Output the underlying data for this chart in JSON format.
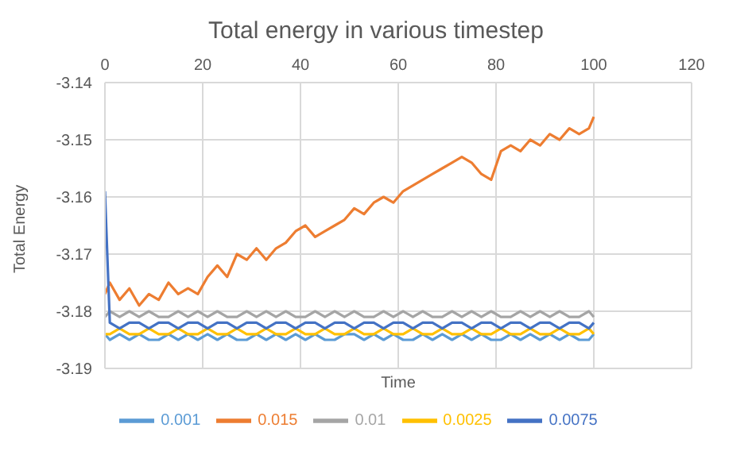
{
  "chart_data": {
    "type": "line",
    "title": "Total energy in various timestep",
    "xlabel": "Time",
    "ylabel": "Total Energy",
    "x": [
      0,
      1,
      3,
      5,
      7,
      9,
      11,
      13,
      15,
      17,
      19,
      21,
      23,
      25,
      27,
      29,
      31,
      33,
      35,
      37,
      39,
      41,
      43,
      45,
      47,
      49,
      51,
      53,
      55,
      57,
      59,
      61,
      63,
      65,
      67,
      69,
      71,
      73,
      75,
      77,
      79,
      81,
      83,
      85,
      87,
      89,
      91,
      93,
      95,
      97,
      99,
      100
    ],
    "xlim": [
      0,
      120
    ],
    "xticks": [
      0,
      20,
      40,
      60,
      80,
      100,
      120
    ],
    "ylim": [
      -3.19,
      -3.14
    ],
    "yticks": [
      -3.19,
      -3.18,
      -3.17,
      -3.16,
      -3.15,
      -3.14
    ],
    "grid": true,
    "legend": "bottom",
    "marker": "none",
    "line_style": "solid",
    "series": [
      {
        "name": "0.001",
        "color": "#5b9bd5",
        "values": [
          -3.184,
          -3.185,
          -3.184,
          -3.185,
          -3.184,
          -3.185,
          -3.185,
          -3.184,
          -3.185,
          -3.184,
          -3.185,
          -3.184,
          -3.185,
          -3.184,
          -3.185,
          -3.185,
          -3.184,
          -3.185,
          -3.184,
          -3.185,
          -3.184,
          -3.185,
          -3.184,
          -3.185,
          -3.185,
          -3.184,
          -3.184,
          -3.185,
          -3.184,
          -3.185,
          -3.184,
          -3.185,
          -3.185,
          -3.184,
          -3.185,
          -3.184,
          -3.185,
          -3.184,
          -3.185,
          -3.184,
          -3.185,
          -3.185,
          -3.184,
          -3.185,
          -3.184,
          -3.185,
          -3.184,
          -3.185,
          -3.184,
          -3.185,
          -3.185,
          -3.184
        ]
      },
      {
        "name": "0.015",
        "color": "#ed7d31",
        "values": [
          -3.177,
          -3.175,
          -3.178,
          -3.176,
          -3.179,
          -3.177,
          -3.178,
          -3.175,
          -3.177,
          -3.176,
          -3.177,
          -3.174,
          -3.172,
          -3.174,
          -3.17,
          -3.171,
          -3.169,
          -3.171,
          -3.169,
          -3.168,
          -3.166,
          -3.165,
          -3.167,
          -3.166,
          -3.165,
          -3.164,
          -3.162,
          -3.163,
          -3.161,
          -3.16,
          -3.161,
          -3.159,
          -3.158,
          -3.157,
          -3.156,
          -3.155,
          -3.154,
          -3.153,
          -3.154,
          -3.156,
          -3.157,
          -3.152,
          -3.151,
          -3.152,
          -3.15,
          -3.151,
          -3.149,
          -3.15,
          -3.148,
          -3.149,
          -3.148,
          -3.146
        ]
      },
      {
        "name": "0.01",
        "color": "#a5a5a5",
        "values": [
          -3.181,
          -3.18,
          -3.181,
          -3.18,
          -3.181,
          -3.18,
          -3.181,
          -3.181,
          -3.18,
          -3.181,
          -3.18,
          -3.181,
          -3.18,
          -3.181,
          -3.181,
          -3.18,
          -3.181,
          -3.18,
          -3.181,
          -3.18,
          -3.181,
          -3.181,
          -3.18,
          -3.181,
          -3.18,
          -3.181,
          -3.18,
          -3.181,
          -3.181,
          -3.18,
          -3.181,
          -3.18,
          -3.181,
          -3.18,
          -3.181,
          -3.181,
          -3.18,
          -3.181,
          -3.18,
          -3.181,
          -3.18,
          -3.181,
          -3.181,
          -3.18,
          -3.181,
          -3.18,
          -3.181,
          -3.18,
          -3.181,
          -3.181,
          -3.18,
          -3.181
        ]
      },
      {
        "name": "0.0025",
        "color": "#ffc000",
        "values": [
          -3.184,
          -3.184,
          -3.183,
          -3.184,
          -3.184,
          -3.183,
          -3.184,
          -3.184,
          -3.183,
          -3.184,
          -3.184,
          -3.183,
          -3.184,
          -3.184,
          -3.183,
          -3.184,
          -3.184,
          -3.183,
          -3.184,
          -3.184,
          -3.183,
          -3.184,
          -3.184,
          -3.183,
          -3.184,
          -3.184,
          -3.183,
          -3.184,
          -3.184,
          -3.183,
          -3.184,
          -3.184,
          -3.183,
          -3.184,
          -3.184,
          -3.183,
          -3.184,
          -3.184,
          -3.183,
          -3.184,
          -3.184,
          -3.183,
          -3.184,
          -3.184,
          -3.183,
          -3.184,
          -3.184,
          -3.183,
          -3.184,
          -3.184,
          -3.183,
          -3.184
        ]
      },
      {
        "name": "0.0075",
        "color": "#4472c4",
        "values": [
          -3.159,
          -3.182,
          -3.183,
          -3.182,
          -3.182,
          -3.183,
          -3.182,
          -3.182,
          -3.183,
          -3.182,
          -3.182,
          -3.183,
          -3.182,
          -3.182,
          -3.183,
          -3.182,
          -3.182,
          -3.183,
          -3.182,
          -3.182,
          -3.183,
          -3.182,
          -3.182,
          -3.183,
          -3.182,
          -3.182,
          -3.183,
          -3.182,
          -3.182,
          -3.183,
          -3.182,
          -3.182,
          -3.183,
          -3.182,
          -3.182,
          -3.183,
          -3.182,
          -3.182,
          -3.183,
          -3.182,
          -3.182,
          -3.183,
          -3.182,
          -3.182,
          -3.183,
          -3.182,
          -3.182,
          -3.183,
          -3.182,
          -3.182,
          -3.183,
          -3.182
        ]
      }
    ]
  }
}
